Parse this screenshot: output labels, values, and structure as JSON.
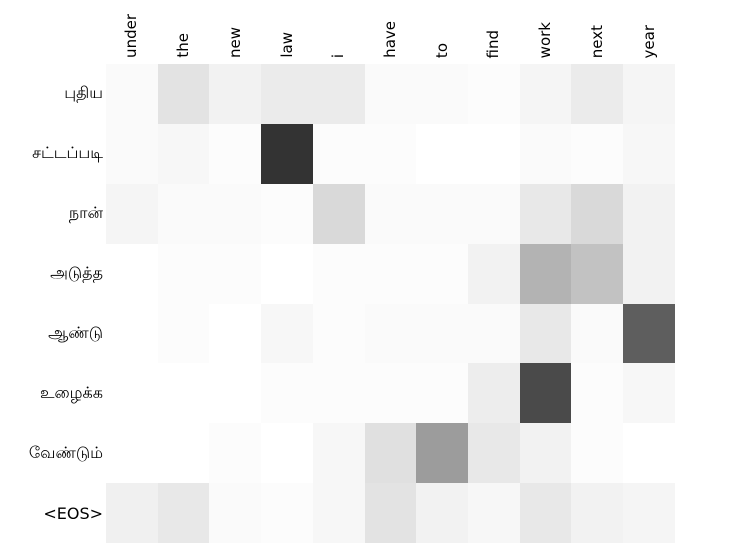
{
  "figure": {
    "kind": "attention-alignment-heatmap",
    "background_color": "#ffffff",
    "text_color": "#000000"
  },
  "chart_data": {
    "type": "heatmap",
    "title": "",
    "xlabel": "",
    "ylabel": "",
    "x_categories": [
      "under",
      "the",
      "new",
      "law",
      "i",
      "have",
      "to",
      "find",
      "work",
      "next",
      "year"
    ],
    "y_categories": [
      "புதிய",
      "சட்டப்படி",
      "நான்",
      "அடுத்த",
      "ஆண்டு",
      "உழைக்க",
      "வேண்டும்",
      "<EOS>"
    ],
    "values": [
      [
        0.02,
        0.11,
        0.05,
        0.08,
        0.08,
        0.02,
        0.02,
        0.01,
        0.04,
        0.08,
        0.04
      ],
      [
        0.02,
        0.03,
        0.01,
        0.8,
        0.01,
        0.01,
        0.0,
        0.0,
        0.02,
        0.01,
        0.03
      ],
      [
        0.04,
        0.02,
        0.02,
        0.01,
        0.15,
        0.02,
        0.02,
        0.02,
        0.09,
        0.15,
        0.05
      ],
      [
        0.0,
        0.01,
        0.01,
        0.0,
        0.01,
        0.01,
        0.01,
        0.05,
        0.3,
        0.24,
        0.05
      ],
      [
        0.0,
        0.01,
        0.0,
        0.03,
        0.01,
        0.02,
        0.02,
        0.02,
        0.09,
        0.02,
        0.63
      ],
      [
        0.0,
        0.0,
        0.0,
        0.01,
        0.01,
        0.01,
        0.01,
        0.07,
        0.71,
        0.01,
        0.03
      ],
      [
        0.0,
        0.0,
        0.01,
        0.0,
        0.03,
        0.12,
        0.39,
        0.09,
        0.05,
        0.01,
        0.0
      ],
      [
        0.06,
        0.09,
        0.02,
        0.01,
        0.03,
        0.11,
        0.05,
        0.03,
        0.09,
        0.05,
        0.04
      ]
    ],
    "vmin": 0,
    "vmax": 1,
    "colormap": "grayscale white(0) to black(1)",
    "grid": false,
    "legend": "none",
    "x_tick_rotation_deg": 90
  }
}
